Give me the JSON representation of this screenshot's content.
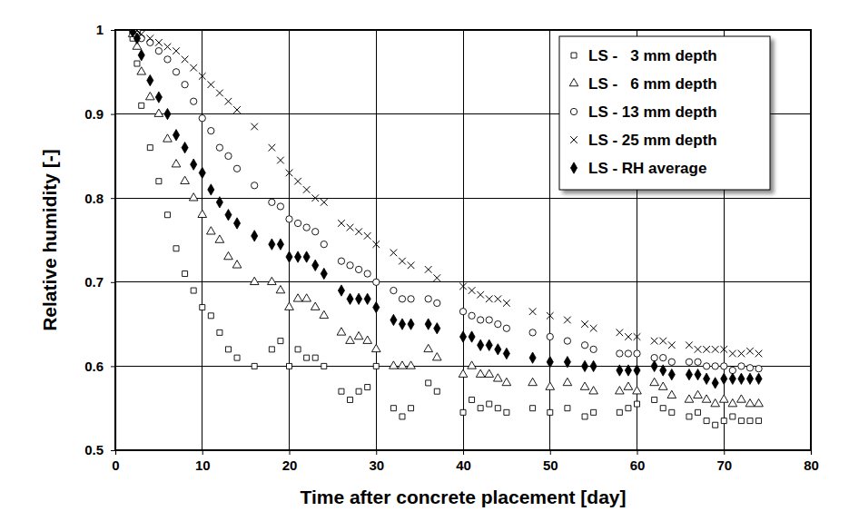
{
  "chart_data": {
    "type": "scatter",
    "x_label": "Time after concrete placement [day]",
    "y_label": "Relative humidity [-]",
    "xlim": [
      0,
      80
    ],
    "xticks": [
      0,
      10,
      20,
      30,
      40,
      50,
      60,
      70,
      80
    ],
    "ylim": [
      0.5,
      1
    ],
    "yticks": [
      0.5,
      0.6,
      0.7,
      0.8,
      0.9,
      1
    ],
    "grid": true,
    "legend": "upper right",
    "x": [
      2,
      2.5,
      3,
      4,
      5,
      6,
      7,
      8,
      9,
      10,
      11,
      12,
      13,
      14,
      16,
      18,
      19,
      20,
      21,
      22,
      23,
      24,
      26,
      27,
      28,
      29,
      30,
      32,
      33,
      34,
      36,
      37,
      40,
      41,
      42,
      43,
      44,
      45,
      48,
      50,
      52,
      54,
      55,
      58,
      59,
      60,
      62,
      63,
      64,
      66,
      67,
      68,
      69,
      70,
      71,
      72,
      73,
      74
    ],
    "series": [
      {
        "name": "LS -   3 mm depth",
        "color": "#000000",
        "marker": "square",
        "values": [
          0.99,
          0.96,
          0.91,
          0.86,
          0.82,
          0.78,
          0.74,
          0.71,
          0.69,
          0.67,
          0.66,
          0.64,
          0.62,
          0.61,
          0.6,
          0.62,
          0.63,
          0.6,
          0.62,
          0.61,
          0.61,
          0.6,
          0.57,
          0.56,
          0.57,
          0.575,
          0.6,
          0.55,
          0.54,
          0.55,
          0.58,
          0.57,
          0.545,
          0.56,
          0.55,
          0.555,
          0.55,
          0.545,
          0.55,
          0.545,
          0.55,
          0.54,
          0.545,
          0.545,
          0.55,
          0.555,
          0.56,
          0.55,
          0.545,
          0.54,
          0.545,
          0.535,
          0.53,
          0.535,
          0.54,
          0.535,
          0.535,
          0.535
        ]
      },
      {
        "name": "LS -   6 mm depth",
        "color": "#000000",
        "marker": "triangle",
        "values": [
          0.995,
          0.98,
          0.95,
          0.92,
          0.9,
          0.87,
          0.84,
          0.82,
          0.8,
          0.78,
          0.76,
          0.75,
          0.73,
          0.72,
          0.7,
          0.7,
          0.69,
          0.67,
          0.68,
          0.68,
          0.67,
          0.66,
          0.64,
          0.63,
          0.635,
          0.63,
          0.62,
          0.6,
          0.6,
          0.6,
          0.62,
          0.61,
          0.59,
          0.6,
          0.59,
          0.59,
          0.585,
          0.58,
          0.58,
          0.575,
          0.58,
          0.575,
          0.57,
          0.57,
          0.575,
          0.57,
          0.58,
          0.575,
          0.565,
          0.56,
          0.565,
          0.56,
          0.555,
          0.56,
          0.555,
          0.56,
          0.555,
          0.555
        ]
      },
      {
        "name": "LS - 13 mm depth",
        "color": "#000000",
        "marker": "circle",
        "values": [
          1,
          0.998,
          0.99,
          0.985,
          0.975,
          0.965,
          0.95,
          0.935,
          0.915,
          0.895,
          0.88,
          0.86,
          0.85,
          0.835,
          0.815,
          0.795,
          0.79,
          0.775,
          0.77,
          0.765,
          0.76,
          0.745,
          0.725,
          0.72,
          0.715,
          0.71,
          0.7,
          0.69,
          0.68,
          0.68,
          0.68,
          0.675,
          0.665,
          0.66,
          0.655,
          0.655,
          0.65,
          0.645,
          0.64,
          0.635,
          0.63,
          0.625,
          0.62,
          0.615,
          0.615,
          0.615,
          0.61,
          0.61,
          0.605,
          0.605,
          0.605,
          0.6,
          0.6,
          0.6,
          0.595,
          0.6,
          0.598,
          0.597
        ]
      },
      {
        "name": "LS - 25 mm depth",
        "color": "#000000",
        "marker": "x",
        "values": [
          1,
          0.999,
          0.995,
          0.99,
          0.985,
          0.98,
          0.975,
          0.965,
          0.955,
          0.945,
          0.935,
          0.925,
          0.915,
          0.905,
          0.885,
          0.86,
          0.845,
          0.83,
          0.82,
          0.81,
          0.8,
          0.795,
          0.77,
          0.765,
          0.76,
          0.755,
          0.745,
          0.735,
          0.725,
          0.72,
          0.715,
          0.705,
          0.695,
          0.69,
          0.685,
          0.68,
          0.68,
          0.675,
          0.665,
          0.66,
          0.655,
          0.65,
          0.645,
          0.64,
          0.635,
          0.635,
          0.63,
          0.63,
          0.625,
          0.625,
          0.62,
          0.62,
          0.62,
          0.62,
          0.615,
          0.615,
          0.618,
          0.615
        ]
      },
      {
        "name": "LS - RH average",
        "color": "#000000",
        "marker": "diamond",
        "values": [
          0.998,
          0.99,
          0.97,
          0.94,
          0.92,
          0.9,
          0.875,
          0.86,
          0.84,
          0.83,
          0.81,
          0.795,
          0.78,
          0.77,
          0.755,
          0.745,
          0.745,
          0.73,
          0.73,
          0.73,
          0.72,
          0.71,
          0.69,
          0.68,
          0.68,
          0.68,
          0.67,
          0.655,
          0.65,
          0.65,
          0.65,
          0.645,
          0.635,
          0.635,
          0.625,
          0.625,
          0.62,
          0.615,
          0.61,
          0.605,
          0.605,
          0.6,
          0.6,
          0.595,
          0.595,
          0.595,
          0.6,
          0.595,
          0.59,
          0.59,
          0.59,
          0.585,
          0.58,
          0.585,
          0.585,
          0.585,
          0.585,
          0.585
        ]
      }
    ]
  }
}
